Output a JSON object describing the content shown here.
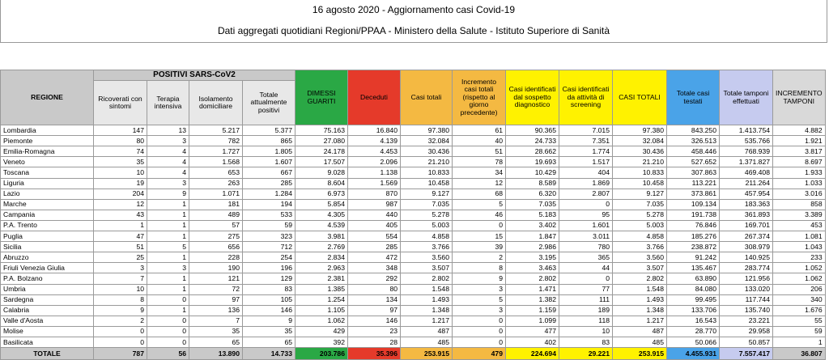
{
  "header": {
    "title": "16 agosto 2020 - Aggiornamento casi Covid-19",
    "subtitle": "Dati aggregati quotidiani Regioni/PPAA - Ministero della Salute - Istituto Superiore di Sanità"
  },
  "table": {
    "col_regione": "REGIONE",
    "group_positivi": "POSITIVI SARS-CoV2",
    "headers": [
      "Ricoverati con sintomi",
      "Terapia intensiva",
      "Isolamento domiciliare",
      "Totale attualmente positivi",
      "DIMESSI GUARITI",
      "Deceduti",
      "Casi totali",
      "Incremento casi totali (rispetto al giorno precedente)",
      "Casi identificati dal sospetto diagnostico",
      "Casi identificati da attività di screening",
      "CASI TOTALI",
      "Totale casi testati",
      "Totale tamponi effettuati",
      "INCREMENTO TAMPONI"
    ],
    "rows": [
      [
        "Lombardia",
        "147",
        "13",
        "5.217",
        "5.377",
        "75.163",
        "16.840",
        "97.380",
        "61",
        "90.365",
        "7.015",
        "97.380",
        "843.250",
        "1.413.754",
        "4.882"
      ],
      [
        "Piemonte",
        "80",
        "3",
        "782",
        "865",
        "27.080",
        "4.139",
        "32.084",
        "40",
        "24.733",
        "7.351",
        "32.084",
        "326.513",
        "535.766",
        "1.921"
      ],
      [
        "Emilia-Romagna",
        "74",
        "4",
        "1.727",
        "1.805",
        "24.178",
        "4.453",
        "30.436",
        "51",
        "28.662",
        "1.774",
        "30.436",
        "458.446",
        "768.939",
        "3.817"
      ],
      [
        "Veneto",
        "35",
        "4",
        "1.568",
        "1.607",
        "17.507",
        "2.096",
        "21.210",
        "78",
        "19.693",
        "1.517",
        "21.210",
        "527.652",
        "1.371.827",
        "8.697"
      ],
      [
        "Toscana",
        "10",
        "4",
        "653",
        "667",
        "9.028",
        "1.138",
        "10.833",
        "34",
        "10.429",
        "404",
        "10.833",
        "307.863",
        "469.408",
        "1.933"
      ],
      [
        "Liguria",
        "19",
        "3",
        "263",
        "285",
        "8.604",
        "1.569",
        "10.458",
        "12",
        "8.589",
        "1.869",
        "10.458",
        "113.221",
        "211.264",
        "1.033"
      ],
      [
        "Lazio",
        "204",
        "9",
        "1.071",
        "1.284",
        "6.973",
        "870",
        "9.127",
        "68",
        "6.320",
        "2.807",
        "9.127",
        "373.861",
        "457.954",
        "3.016"
      ],
      [
        "Marche",
        "12",
        "1",
        "181",
        "194",
        "5.854",
        "987",
        "7.035",
        "5",
        "7.035",
        "0",
        "7.035",
        "109.134",
        "183.363",
        "858"
      ],
      [
        "Campania",
        "43",
        "1",
        "489",
        "533",
        "4.305",
        "440",
        "5.278",
        "46",
        "5.183",
        "95",
        "5.278",
        "191.738",
        "361.893",
        "3.389"
      ],
      [
        "P.A. Trento",
        "1",
        "1",
        "57",
        "59",
        "4.539",
        "405",
        "5.003",
        "0",
        "3.402",
        "1.601",
        "5.003",
        "76.846",
        "169.701",
        "453"
      ],
      [
        "Puglia",
        "47",
        "1",
        "275",
        "323",
        "3.981",
        "554",
        "4.858",
        "15",
        "1.847",
        "3.011",
        "4.858",
        "185.276",
        "267.374",
        "1.081"
      ],
      [
        "Sicilia",
        "51",
        "5",
        "656",
        "712",
        "2.769",
        "285",
        "3.766",
        "39",
        "2.986",
        "780",
        "3.766",
        "238.872",
        "308.979",
        "1.043"
      ],
      [
        "Abruzzo",
        "25",
        "1",
        "228",
        "254",
        "2.834",
        "472",
        "3.560",
        "2",
        "3.195",
        "365",
        "3.560",
        "91.242",
        "140.925",
        "233"
      ],
      [
        "Friuli Venezia Giulia",
        "3",
        "3",
        "190",
        "196",
        "2.963",
        "348",
        "3.507",
        "8",
        "3.463",
        "44",
        "3.507",
        "135.467",
        "283.774",
        "1.052"
      ],
      [
        "P.A. Bolzano",
        "7",
        "1",
        "121",
        "129",
        "2.381",
        "292",
        "2.802",
        "9",
        "2.802",
        "0",
        "2.802",
        "63.890",
        "121.956",
        "1.062"
      ],
      [
        "Umbria",
        "10",
        "1",
        "72",
        "83",
        "1.385",
        "80",
        "1.548",
        "3",
        "1.471",
        "77",
        "1.548",
        "84.080",
        "133.020",
        "206"
      ],
      [
        "Sardegna",
        "8",
        "0",
        "97",
        "105",
        "1.254",
        "134",
        "1.493",
        "5",
        "1.382",
        "111",
        "1.493",
        "99.495",
        "117.744",
        "340"
      ],
      [
        "Calabria",
        "9",
        "1",
        "136",
        "146",
        "1.105",
        "97",
        "1.348",
        "3",
        "1.159",
        "189",
        "1.348",
        "133.706",
        "135.740",
        "1.676"
      ],
      [
        "Valle d'Aosta",
        "2",
        "0",
        "7",
        "9",
        "1.062",
        "146",
        "1.217",
        "0",
        "1.099",
        "118",
        "1.217",
        "16.543",
        "23.221",
        "55"
      ],
      [
        "Molise",
        "0",
        "0",
        "35",
        "35",
        "429",
        "23",
        "487",
        "0",
        "477",
        "10",
        "487",
        "28.770",
        "29.958",
        "59"
      ],
      [
        "Basilicata",
        "0",
        "0",
        "65",
        "65",
        "392",
        "28",
        "485",
        "0",
        "402",
        "83",
        "485",
        "50.066",
        "50.857",
        "1"
      ]
    ],
    "total": [
      "TOTALE",
      "787",
      "56",
      "13.890",
      "14.733",
      "203.786",
      "35.396",
      "253.915",
      "479",
      "224.694",
      "29.221",
      "253.915",
      "4.455.931",
      "7.557.417",
      "36.807"
    ]
  },
  "colors": {
    "dimessi": "#2aa845",
    "deceduti": "#e53a2a",
    "casi_totali": "#f4b942",
    "screening": "#fff200",
    "testati": "#4aa3e8",
    "tamponi": "#c6cbef"
  }
}
